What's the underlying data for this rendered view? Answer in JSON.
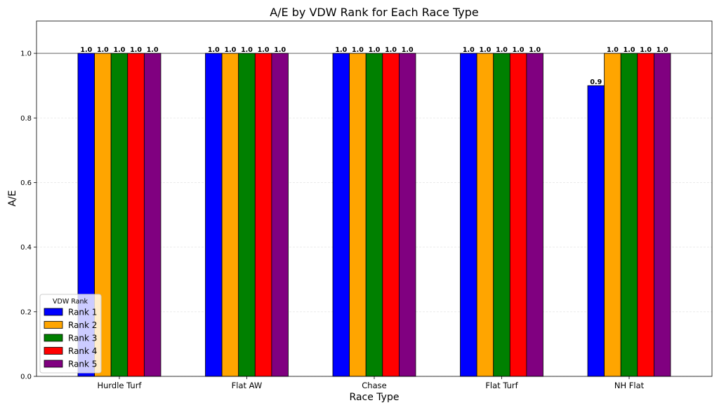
{
  "chart_data": {
    "type": "bar",
    "title": "A/E by VDW Rank for Each Race Type",
    "xlabel": "Race Type",
    "ylabel": "A/E",
    "categories": [
      "Hurdle Turf",
      "Flat AW",
      "Chase",
      "Flat Turf",
      "NH Flat"
    ],
    "series": [
      {
        "name": "Rank 1",
        "color": "#0000ff",
        "values": [
          1.0,
          1.0,
          1.0,
          1.0,
          0.9
        ],
        "labels": [
          "1.0",
          "1.0",
          "1.0",
          "1.0",
          "0.9"
        ]
      },
      {
        "name": "Rank 2",
        "color": "#ffa500",
        "values": [
          1.0,
          1.0,
          1.0,
          1.0,
          1.0
        ],
        "labels": [
          "1.0",
          "1.0",
          "1.0",
          "1.0",
          "1.0"
        ]
      },
      {
        "name": "Rank 3",
        "color": "#008000",
        "values": [
          1.0,
          1.0,
          1.0,
          1.0,
          1.0
        ],
        "labels": [
          "1.0",
          "1.0",
          "1.0",
          "1.0",
          "1.0"
        ]
      },
      {
        "name": "Rank 4",
        "color": "#ff0000",
        "values": [
          1.0,
          1.0,
          1.0,
          1.0,
          1.0
        ],
        "labels": [
          "1.0",
          "1.0",
          "1.0",
          "1.0",
          "1.0"
        ]
      },
      {
        "name": "Rank 5",
        "color": "#800080",
        "values": [
          1.0,
          1.0,
          1.0,
          1.0,
          1.0
        ],
        "labels": [
          "1.0",
          "1.0",
          "1.0",
          "1.0",
          "1.0"
        ]
      }
    ],
    "ylim": [
      0,
      1.1
    ],
    "yticks": [
      0.0,
      0.2,
      0.4,
      0.6,
      0.8,
      1.0
    ],
    "ytick_labels": [
      "0.0",
      "0.2",
      "0.4",
      "0.6",
      "0.8",
      "1.0"
    ],
    "reference_line": 1.0,
    "grid": true,
    "legend": {
      "title": "VDW Rank",
      "placement": "lower-left"
    }
  }
}
